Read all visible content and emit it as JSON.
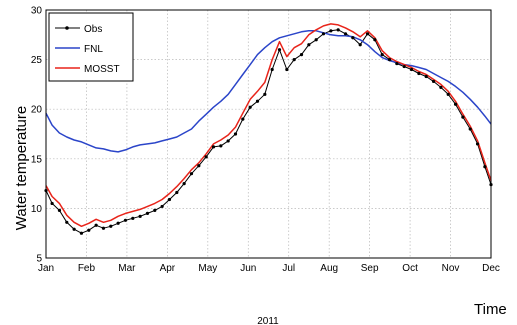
{
  "chart_data": {
    "type": "line",
    "title": "",
    "xlabel": "Time",
    "xlabel_secondary": "2011",
    "ylabel": "Water temperature",
    "x_tick_labels": [
      "Jan",
      "Feb",
      "Mar",
      "Apr",
      "May",
      "Jun",
      "Jul",
      "Aug",
      "Sep",
      "Oct",
      "Nov",
      "Dec"
    ],
    "x_unit": "day of year",
    "xlim": [
      1,
      365
    ],
    "ylim": [
      5,
      30
    ],
    "y_ticks": [
      5,
      10,
      15,
      20,
      25,
      30
    ],
    "grid": true,
    "legend_position": "top-left",
    "series": [
      {
        "name": "Obs",
        "color": "#000000",
        "marker": "dot",
        "x": [
          1,
          6,
          12,
          18,
          24,
          30,
          36,
          42,
          48,
          54,
          60,
          66,
          72,
          78,
          84,
          90,
          96,
          102,
          108,
          114,
          120,
          126,
          132,
          138,
          144,
          150,
          156,
          162,
          168,
          174,
          180,
          186,
          192,
          198,
          204,
          210,
          216,
          222,
          228,
          234,
          240,
          246,
          252,
          258,
          264,
          270,
          276,
          282,
          288,
          294,
          300,
          306,
          312,
          318,
          324,
          330,
          336,
          342,
          348,
          354,
          360,
          365
        ],
        "y": [
          11.8,
          10.5,
          9.8,
          8.6,
          7.9,
          7.5,
          7.8,
          8.3,
          8.0,
          8.2,
          8.5,
          8.8,
          9.0,
          9.2,
          9.5,
          9.8,
          10.2,
          10.9,
          11.6,
          12.5,
          13.5,
          14.3,
          15.2,
          16.2,
          16.3,
          16.8,
          17.5,
          19.0,
          20.2,
          20.8,
          21.5,
          24.0,
          26.0,
          24.0,
          25.0,
          25.5,
          26.5,
          27.0,
          27.6,
          27.9,
          28.0,
          27.6,
          27.2,
          26.5,
          27.6,
          27.0,
          25.5,
          25.0,
          24.6,
          24.3,
          24.0,
          23.6,
          23.3,
          22.8,
          22.2,
          21.5,
          20.5,
          19.2,
          18.0,
          16.5,
          14.2,
          12.4
        ]
      },
      {
        "name": "FNL",
        "color": "#2b45c9",
        "marker": "none",
        "x": [
          1,
          6,
          12,
          18,
          24,
          30,
          36,
          42,
          48,
          54,
          60,
          66,
          72,
          78,
          84,
          90,
          96,
          102,
          108,
          114,
          120,
          126,
          132,
          138,
          144,
          150,
          156,
          162,
          168,
          174,
          180,
          186,
          192,
          198,
          204,
          210,
          216,
          222,
          228,
          234,
          240,
          246,
          252,
          258,
          264,
          270,
          276,
          282,
          288,
          294,
          300,
          306,
          312,
          318,
          324,
          330,
          336,
          342,
          348,
          354,
          360,
          365
        ],
        "y": [
          19.6,
          18.4,
          17.6,
          17.2,
          16.9,
          16.7,
          16.4,
          16.1,
          16.0,
          15.8,
          15.7,
          15.9,
          16.2,
          16.4,
          16.5,
          16.6,
          16.8,
          17.0,
          17.2,
          17.6,
          18.0,
          18.8,
          19.5,
          20.2,
          20.8,
          21.5,
          22.5,
          23.5,
          24.5,
          25.5,
          26.2,
          26.8,
          27.2,
          27.4,
          27.6,
          27.8,
          27.9,
          27.9,
          27.7,
          27.5,
          27.4,
          27.4,
          27.3,
          27.0,
          26.5,
          25.8,
          25.2,
          24.9,
          24.7,
          24.5,
          24.4,
          24.2,
          24.0,
          23.6,
          23.2,
          22.8,
          22.3,
          21.7,
          21.0,
          20.2,
          19.3,
          18.5
        ]
      },
      {
        "name": "MOSST",
        "color": "#e8241a",
        "marker": "none",
        "x": [
          1,
          6,
          12,
          18,
          24,
          30,
          36,
          42,
          48,
          54,
          60,
          66,
          72,
          78,
          84,
          90,
          96,
          102,
          108,
          114,
          120,
          126,
          132,
          138,
          144,
          150,
          156,
          162,
          168,
          174,
          180,
          186,
          192,
          198,
          204,
          210,
          216,
          222,
          228,
          234,
          240,
          246,
          252,
          258,
          264,
          270,
          276,
          282,
          288,
          294,
          300,
          306,
          312,
          318,
          324,
          330,
          336,
          342,
          348,
          354,
          360,
          365
        ],
        "y": [
          12.3,
          11.2,
          10.5,
          9.3,
          8.6,
          8.2,
          8.5,
          8.9,
          8.6,
          8.8,
          9.2,
          9.5,
          9.7,
          9.9,
          10.2,
          10.5,
          10.9,
          11.5,
          12.2,
          13.0,
          13.9,
          14.6,
          15.5,
          16.5,
          16.9,
          17.4,
          18.2,
          19.6,
          21.0,
          21.8,
          22.7,
          25.0,
          26.8,
          25.3,
          26.2,
          26.6,
          27.5,
          28.0,
          28.4,
          28.6,
          28.5,
          28.2,
          27.8,
          27.3,
          27.9,
          27.2,
          25.9,
          25.2,
          24.8,
          24.5,
          24.2,
          23.8,
          23.5,
          23.0,
          22.5,
          21.8,
          20.8,
          19.5,
          18.3,
          16.8,
          14.6,
          12.8
        ]
      }
    ]
  }
}
